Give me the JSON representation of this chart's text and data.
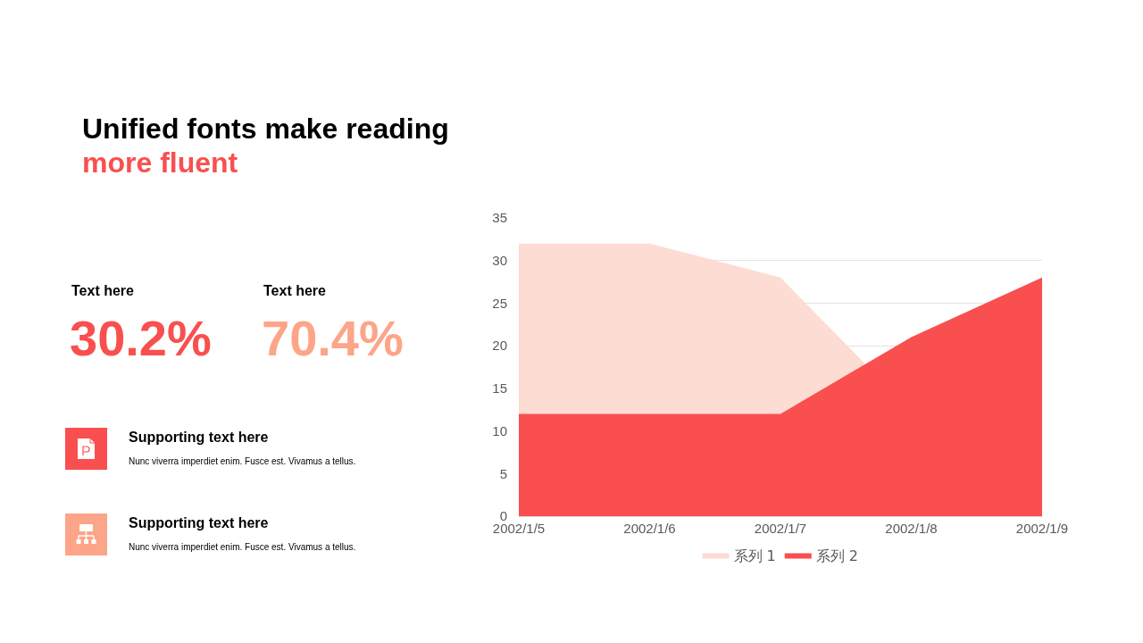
{
  "chart_data": {
    "type": "area",
    "title": "Unified fonts make reading",
    "subtitle": "more fluent",
    "x": [
      "2002-01-05",
      "2002-01-06",
      "2002-01-07",
      "2002-01-08",
      "2002-01-09"
    ],
    "series": [
      {
        "name": "系列 1",
        "color": "#fddcd3",
        "x": [
          "2002-01-05",
          "2002-01-06",
          "2002-01-07",
          "2002-01-07T15:21"
        ],
        "values": [
          32,
          32,
          28,
          18
        ]
      },
      {
        "name": "系列 2",
        "color": "#f94f4f",
        "values": [
          12,
          12,
          12,
          21,
          28
        ]
      }
    ],
    "xlim": [
      "2002-01-05",
      "2002-01-09"
    ],
    "xticks": [
      {
        "value": "2002-01-05",
        "label": "2002/1/5"
      },
      {
        "value": "2002-01-06",
        "label": "2002/1/6"
      },
      {
        "value": "2002-01-07",
        "label": "2002/1/7"
      },
      {
        "value": "2002-01-08",
        "label": "2002/1/8"
      },
      {
        "value": "2002-01-09",
        "label": "2002/1/9"
      }
    ],
    "ylim": [
      0,
      35
    ],
    "yticks": [
      0,
      5,
      10,
      15,
      20,
      25,
      30,
      35
    ],
    "grid": "y",
    "legend": "bottom",
    "annotations": [
      "Text here",
      "30.2%",
      "Text here",
      "70.4%",
      "Supporting text here",
      "Nunc viverra imperdiet enim. Fusce est. Vivamus a tellus.",
      "Supporting text here",
      "Nunc viverra imperdiet enim. Fusce est. Vivamus a tellus."
    ]
  }
}
